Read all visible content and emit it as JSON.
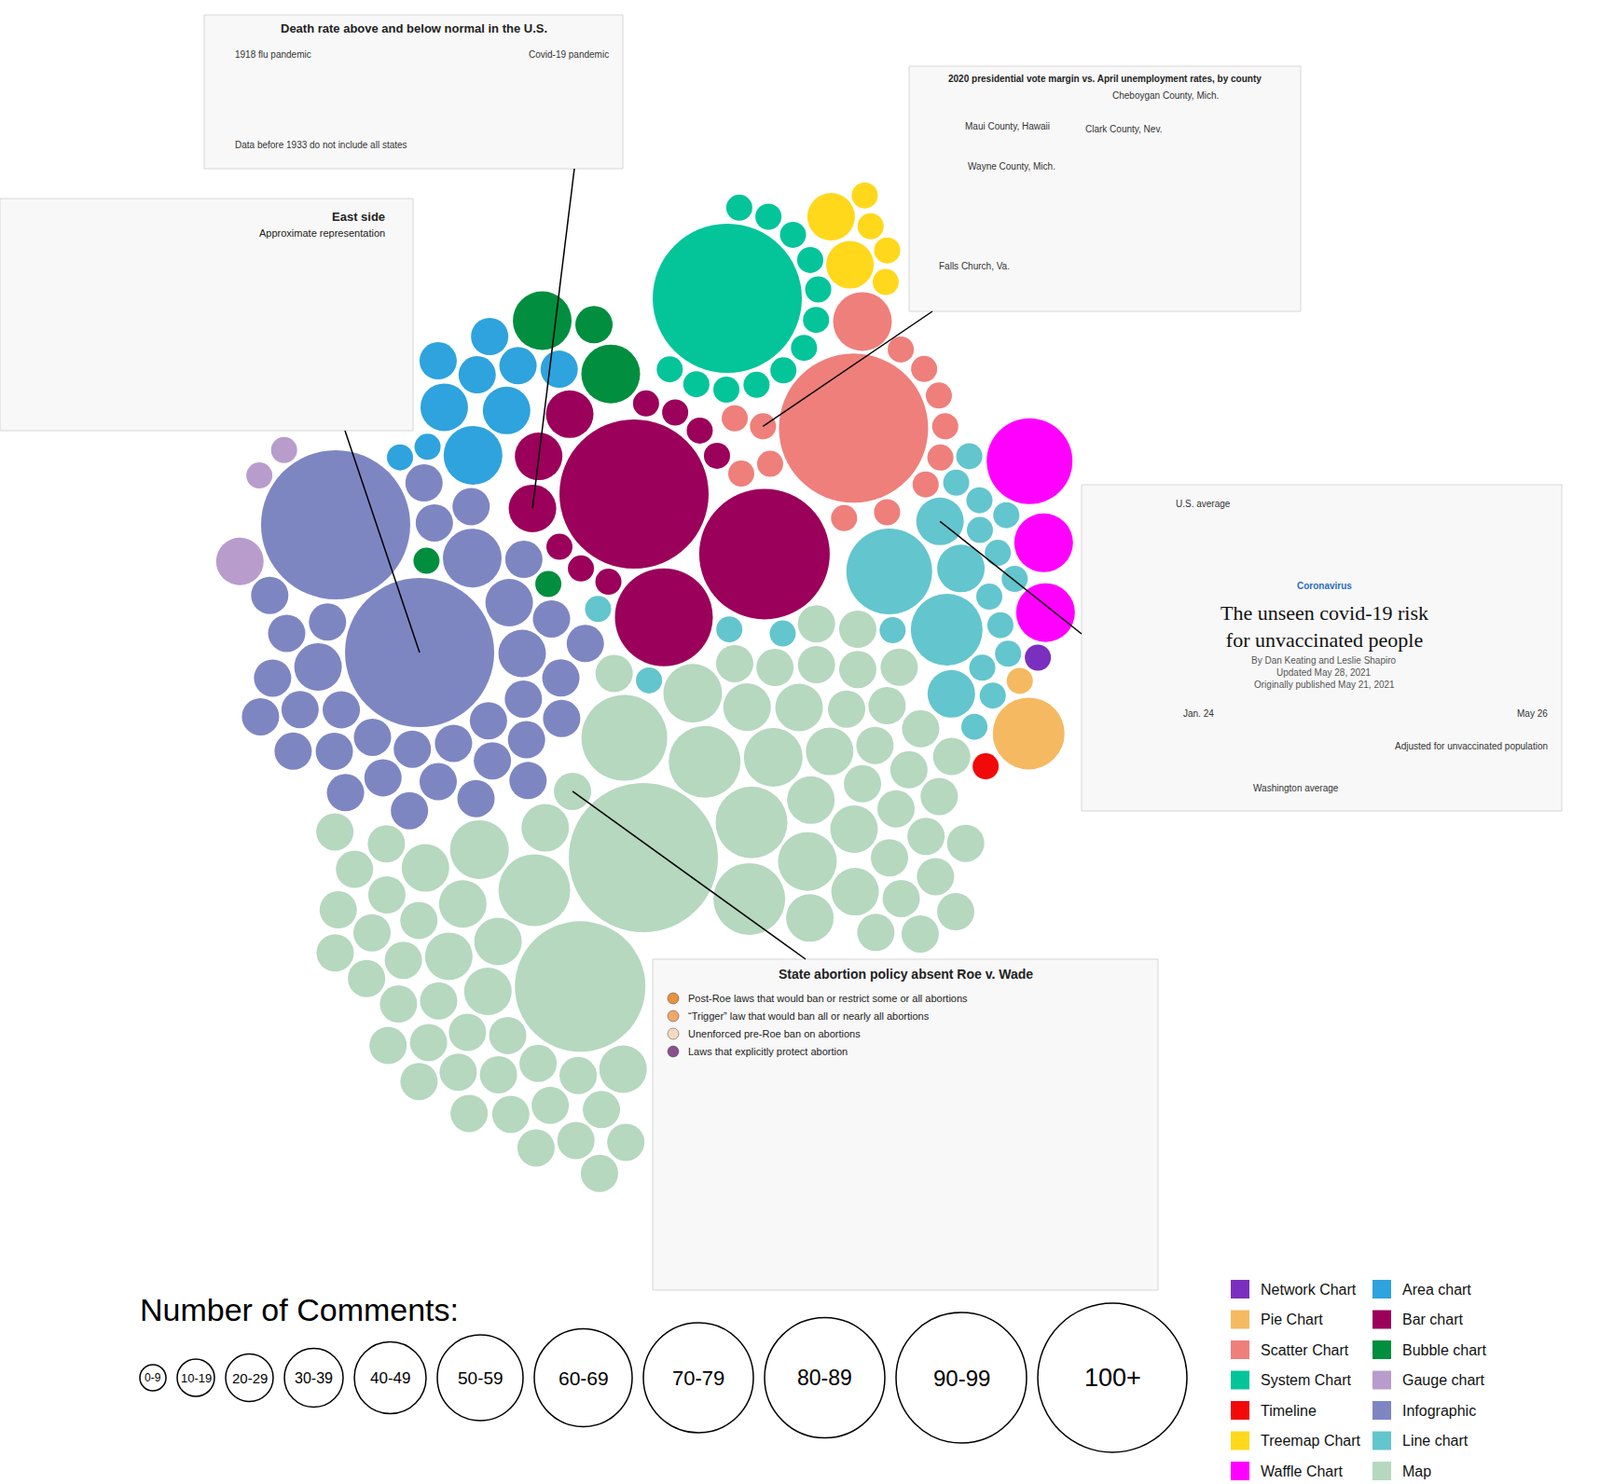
{
  "chart_data": {
    "type": "packed_bubble",
    "size_legend": {
      "title": "Number of Comments:",
      "bins": [
        "0-9",
        "10-19",
        "20-29",
        "30-39",
        "40-49",
        "50-59",
        "60-69",
        "70-79",
        "80-89",
        "90-99",
        "100+"
      ]
    },
    "categories": [
      {
        "name": "Network Chart",
        "color": "#7b2fbe",
        "bubbles": [
          "0-9"
        ]
      },
      {
        "name": "Pie Chart",
        "color": "#f5b961",
        "bubbles": [
          "40-49",
          "0-9"
        ]
      },
      {
        "name": "Scatter Chart",
        "color": "#ef7f7b",
        "bubbles": [
          "100+",
          "30-39",
          {
            "comments": "0-9",
            "example": {
              "title": "2020 presidential vote margin vs. April unemployment rates, by county",
              "notes": [
                "Cheboygan County, Mich.",
                "Maui County, Hawaii",
                "Clark County, Nev.",
                "Wayne County, Mich.",
                "Falls Church, Va."
              ]
            }
          },
          "0-9",
          "0-9",
          "0-9",
          "0-9",
          "0-9",
          "0-9",
          "0-9",
          "0-9",
          "0-9",
          "0-9",
          "0-9"
        ]
      },
      {
        "name": "System Chart",
        "color": "#04c49a",
        "bubbles": [
          "100+",
          "0-9",
          "0-9",
          "0-9",
          "0-9",
          "0-9",
          "0-9",
          "0-9",
          "0-9",
          "0-9",
          "0-9",
          "0-9",
          "0-9"
        ]
      },
      {
        "name": "Timeline",
        "color": "#f20a0a",
        "bubbles": [
          "0-9"
        ]
      },
      {
        "name": "Treemap Chart",
        "color": "#ffd81c",
        "bubbles": [
          "20-29",
          "20-29",
          "0-9",
          "0-9",
          "0-9",
          "0-9"
        ]
      },
      {
        "name": "Waffle Chart",
        "color": "#ff00ff",
        "bubbles": [
          "50-59",
          "30-39",
          "30-39"
        ]
      },
      {
        "name": "Area chart",
        "color": "#2ea3dd",
        "bubbles": [
          "30-39",
          "20-29",
          "20-29",
          "10-19",
          "10-19",
          "10-19",
          "10-19",
          "10-19",
          "0-9",
          "0-9"
        ]
      },
      {
        "name": "Bar chart",
        "color": "#9b005a",
        "bubbles": [
          "100+",
          "90-99",
          "60-69",
          {
            "comments": "20-29",
            "example": {
              "title": "Death rate above and below normal in the U.S.",
              "notes": [
                "1918 flu pandemic",
                "Covid-19 pandemic",
                "Data before 1933 do not include all states"
              ]
            }
          },
          "20-29",
          "20-29",
          "0-9",
          "0-9",
          "0-9",
          "0-9",
          "0-9",
          "0-9",
          "0-9"
        ]
      },
      {
        "name": "Bubble chart",
        "color": "#018e3e",
        "bubbles": [
          "30-39",
          "30-39",
          "10-19",
          "0-9",
          "0-9"
        ]
      },
      {
        "name": "Gauge chart",
        "color": "#b89ccc",
        "bubbles": [
          "20-29",
          "0-9",
          "0-9"
        ]
      },
      {
        "name": "Infographic",
        "color": "#7e86c2",
        "bubbles": [
          {
            "comments": "100+",
            "example": {
              "title": "East side",
              "subtitle": "Approximate representation"
            }
          },
          "100+",
          "30-39",
          "20-29",
          "20-29",
          "20-29",
          "10-19",
          "10-19",
          "10-19",
          "10-19",
          "10-19",
          "10-19",
          "10-19",
          "10-19",
          "10-19",
          "10-19",
          "10-19",
          "10-19",
          "10-19",
          "10-19",
          "10-19",
          "10-19",
          "10-19",
          "10-19",
          "10-19",
          "10-19",
          "10-19",
          "10-19",
          "10-19",
          "10-19",
          "10-19",
          "10-19",
          "10-19",
          "10-19",
          "10-19",
          "10-19"
        ]
      },
      {
        "name": "Line chart",
        "color": "#63c5ce",
        "bubbles": [
          "50-59",
          "40-49",
          {
            "comments": "20-29",
            "example": {
              "kicker": "Coronavirus",
              "title": [
                "The unseen covid-19 risk",
                "for unvaccinated people"
              ],
              "byline": [
                "By Dan Keating and Leslie Shapiro",
                "Updated May 28, 2021",
                "Originally published May 21, 2021"
              ],
              "notes": [
                "U.S. average",
                "Washington average",
                "Jan. 24",
                "May 26",
                "Adjusted for unvaccinated population"
              ]
            }
          },
          "20-29",
          "20-29",
          "0-9",
          "0-9",
          "0-9",
          "0-9",
          "0-9",
          "0-9",
          "0-9",
          "0-9",
          "0-9",
          "0-9",
          "0-9",
          "0-9",
          "0-9",
          "0-9",
          "0-9",
          "0-9",
          "0-9",
          "0-9"
        ]
      },
      {
        "name": "Map",
        "color": "#b5d8bf",
        "bubbles": [
          "100+",
          "90-99",
          "50-59",
          "40-49",
          "40-49",
          "40-49",
          "40-49",
          "30-39",
          "30-39",
          "30-39",
          "30-39",
          "20-29",
          "20-29",
          "20-29",
          "20-29",
          "20-29",
          "20-29",
          "20-29",
          "20-29",
          "20-29",
          "20-29",
          "20-29",
          "20-29",
          "20-29",
          "20-29",
          {
            "comments": "10-19",
            "example": {
              "title": "State abortion policy absent Roe v. Wade",
              "legend": [
                {
                  "label": "Post-Roe laws that would ban or restrict some or all abortions",
                  "color": "#e8913f"
                },
                {
                  "label": "“Trigger” law that would ban all or nearly all abortions",
                  "color": "#f0a868"
                },
                {
                  "label": "Unenforced pre-Roe ban on abortions",
                  "color": "#f7d9c0"
                },
                {
                  "label": "Laws that explicitly protect abortion",
                  "color": "#8b4f8e"
                }
              ]
            }
          },
          "10-19",
          "10-19",
          "10-19",
          "10-19",
          "10-19",
          "10-19",
          "10-19",
          "10-19",
          "10-19",
          "10-19",
          "10-19",
          "10-19",
          "10-19",
          "10-19",
          "10-19",
          "10-19",
          "10-19",
          "10-19",
          "10-19",
          "10-19",
          "10-19",
          "10-19",
          "10-19",
          "10-19",
          "10-19",
          "10-19",
          "10-19",
          "10-19",
          "10-19",
          "10-19",
          "10-19",
          "10-19",
          "10-19",
          "10-19",
          "10-19",
          "10-19",
          "10-19",
          "10-19",
          "10-19",
          "10-19",
          "10-19",
          "10-19",
          "10-19",
          "10-19",
          "10-19",
          "10-19",
          "10-19",
          "10-19",
          "10-19",
          "10-19",
          "10-19",
          "10-19",
          "10-19",
          "10-19"
        ]
      }
    ]
  }
}
